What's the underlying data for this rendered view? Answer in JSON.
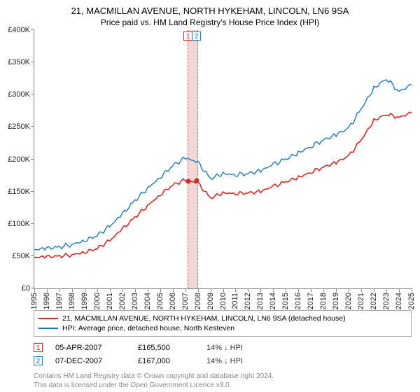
{
  "title_line1": "21, MACMILLAN AVENUE, NORTH HYKEHAM, LINCOLN, LN6 9SA",
  "title_line2": "Price paid vs. HM Land Registry's House Price Index (HPI)",
  "chart": {
    "type": "line",
    "background_color": "#ffffff",
    "axis_color": "#888888",
    "tick_fontsize": 11,
    "ylim": [
      0,
      400000
    ],
    "ytick_step": 50000,
    "ytick_prefix": "£",
    "ytick_suffix": "K",
    "x_years": [
      1995,
      1996,
      1997,
      1998,
      1999,
      2000,
      2001,
      2002,
      2003,
      2004,
      2005,
      2006,
      2007,
      2008,
      2009,
      2010,
      2011,
      2012,
      2013,
      2014,
      2015,
      2016,
      2017,
      2018,
      2019,
      2020,
      2021,
      2022,
      2023,
      2024,
      2025
    ],
    "series": [
      {
        "name": "price_paid",
        "color": "#d62728",
        "width": 1.6,
        "values": [
          48000,
          49000,
          50000,
          52000,
          56000,
          62000,
          74000,
          92000,
          110000,
          128000,
          145000,
          160000,
          168000,
          163000,
          140000,
          148000,
          147000,
          148000,
          150000,
          158000,
          165000,
          172000,
          180000,
          188000,
          195000,
          205000,
          230000,
          260000,
          270000,
          265000,
          272000
        ]
      },
      {
        "name": "hpi",
        "color": "#1f77b4",
        "width": 1.4,
        "values": [
          60000,
          62000,
          64000,
          68000,
          74000,
          82000,
          96000,
          115000,
          136000,
          155000,
          172000,
          190000,
          202000,
          195000,
          170000,
          178000,
          176000,
          178000,
          182000,
          192000,
          200000,
          210000,
          220000,
          230000,
          238000,
          248000,
          278000,
          310000,
          325000,
          305000,
          315000
        ]
      }
    ],
    "marker_band": {
      "year_from": 2007.2,
      "year_to": 2008.0,
      "fill": "#f2d7d7",
      "dash_color": "#cc6666"
    },
    "markers": [
      {
        "num": "1",
        "year": 2007.26,
        "color": "#d62728"
      },
      {
        "num": "2",
        "year": 2007.93,
        "color": "#1f77b4"
      }
    ],
    "sale_dots": [
      {
        "year": 2007.26,
        "value": 165500,
        "color": "#d62728"
      },
      {
        "year": 2007.93,
        "value": 167000,
        "color": "#d62728"
      }
    ]
  },
  "legend": {
    "border_color": "#aaaaaa",
    "items": [
      {
        "color": "#d62728",
        "label": "21, MACMILLAN AVENUE, NORTH HYKEHAM, LINCOLN, LN6 9SA (detached house)"
      },
      {
        "color": "#1f77b4",
        "label": "HPI: Average price, detached house, North Kesteven"
      }
    ]
  },
  "sales": [
    {
      "num": "1",
      "num_color": "#d62728",
      "date": "05-APR-2007",
      "price": "£165,500",
      "delta": "14% ↓ HPI"
    },
    {
      "num": "2",
      "num_color": "#1f77b4",
      "date": "07-DEC-2007",
      "price": "£167,000",
      "delta": "14% ↓ HPI"
    }
  ],
  "footer_line1": "Contains HM Land Registry data © Crown copyright and database right 2024.",
  "footer_line2": "This data is licensed under the Open Government Licence v3.0."
}
